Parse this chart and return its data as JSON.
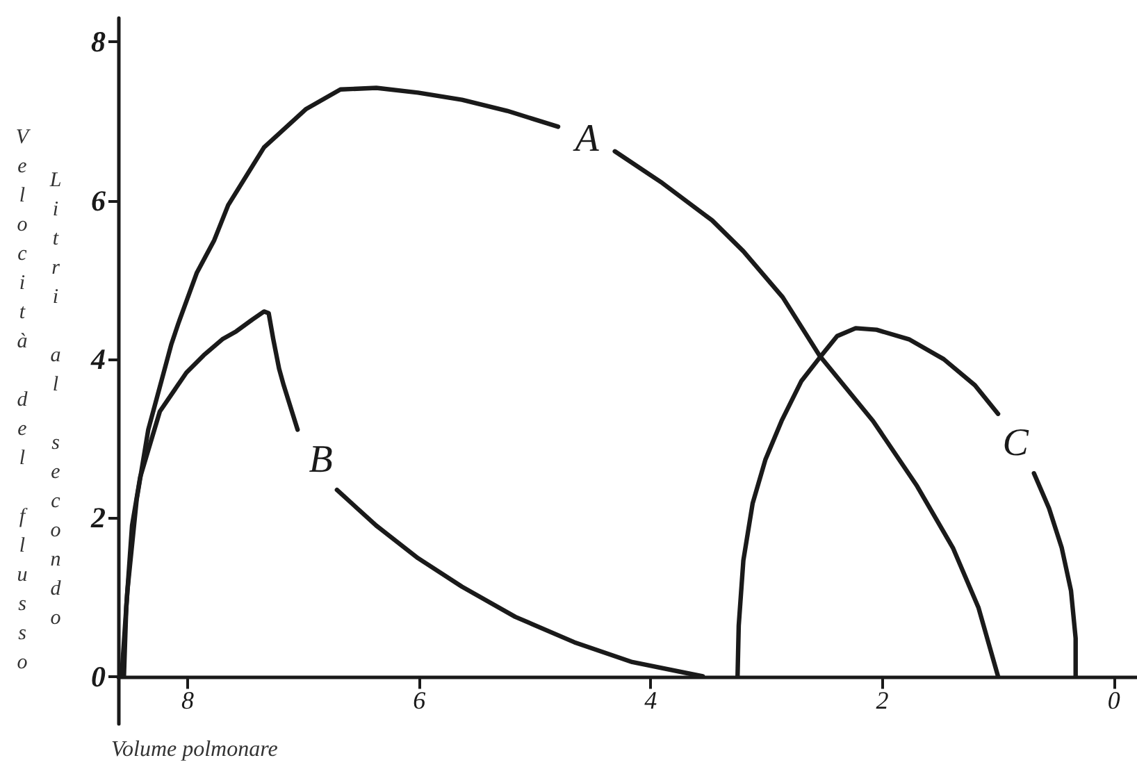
{
  "chart_data": {
    "type": "line",
    "xlabel": "Volume polmonare",
    "ylabel": "Velocità del flusso\nLitri al secondo",
    "xlim": [
      8.6,
      -0.2
    ],
    "xticks": [
      8,
      6,
      4,
      2,
      0
    ],
    "ylim": [
      -0.6,
      8.3
    ],
    "yticks": [
      0,
      2,
      4,
      6,
      8
    ],
    "grid": false,
    "legend": false,
    "marker": "none",
    "line_style": "solid",
    "series": [
      {
        "name": "A",
        "color": "#1a1a1a",
        "x": [
          8.57,
          8.52,
          8.44,
          8.34,
          8.24,
          8.14,
          8.08,
          7.92,
          7.77,
          7.65,
          7.34,
          6.98,
          6.68,
          6.37,
          6.01,
          5.63,
          5.24,
          4.8,
          4.55,
          4.31,
          3.9,
          3.7,
          3.47,
          3.2,
          2.86,
          2.54,
          2.08,
          1.7,
          1.39,
          1.17,
          1.0
        ],
        "values": [
          0,
          1.08,
          2.23,
          3.11,
          3.65,
          4.19,
          4.45,
          5.09,
          5.5,
          5.94,
          6.67,
          7.15,
          7.4,
          7.42,
          7.36,
          7.27,
          7.13,
          6.93,
          null,
          6.62,
          6.22,
          6.0,
          5.75,
          5.36,
          4.78,
          4.04,
          3.22,
          2.4,
          1.62,
          0.87,
          0
        ]
      },
      {
        "name": "B",
        "color": "#1a1a1a",
        "x": [
          8.55,
          8.53,
          8.48,
          8.41,
          8.24,
          8.01,
          7.86,
          7.7,
          7.58,
          7.44,
          7.34,
          7.3,
          7.26,
          7.21,
          7.17,
          7.05,
          6.85,
          6.71,
          6.37,
          6.01,
          5.63,
          5.17,
          4.66,
          4.16,
          3.55
        ],
        "values": [
          0,
          0.87,
          1.9,
          2.51,
          3.34,
          3.83,
          4.05,
          4.25,
          4.35,
          4.5,
          4.6,
          4.58,
          4.25,
          3.88,
          3.67,
          3.11,
          null,
          2.35,
          1.9,
          1.49,
          1.13,
          0.75,
          0.43,
          0.18,
          0
        ]
      },
      {
        "name": "C",
        "color": "#1a1a1a",
        "x": [
          3.25,
          3.24,
          3.2,
          3.12,
          3.01,
          2.87,
          2.7,
          2.54,
          2.39,
          2.23,
          2.05,
          1.77,
          1.47,
          1.2,
          1.0,
          0.85,
          0.69,
          0.56,
          0.45,
          0.37,
          0.33,
          0.33
        ],
        "values": [
          0,
          0.64,
          1.46,
          2.18,
          2.73,
          3.22,
          3.72,
          4.02,
          4.29,
          4.39,
          4.37,
          4.25,
          4.0,
          3.67,
          3.31,
          null,
          2.56,
          2.12,
          1.62,
          1.08,
          0.48,
          0
        ]
      }
    ]
  }
}
